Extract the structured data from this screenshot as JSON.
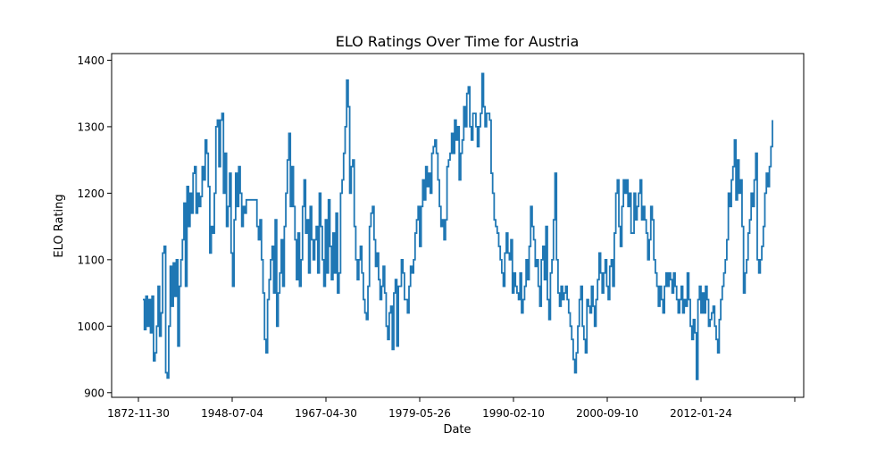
{
  "chart_data": {
    "type": "line",
    "title": "ELO Ratings Over Time for Austria",
    "xlabel": "Date",
    "ylabel": "ELO Rating",
    "x_ticks": [
      "1872-11-30",
      "1948-07-04",
      "1967-04-30",
      "1979-05-26",
      "1990-02-10",
      "2000-09-10",
      "2012-01-24",
      ""
    ],
    "y_ticks": [
      900,
      1000,
      1100,
      1200,
      1300,
      1400
    ],
    "ylim": [
      893,
      1410
    ],
    "grid": false,
    "legend": "none",
    "series": [
      {
        "color": "#1f77b4",
        "values": [
          1040,
          995,
          1045,
          1000,
          1040,
          990,
          1045,
          948,
          960,
          1000,
          1060,
          985,
          1020,
          1110,
          1120,
          930,
          922,
          1000,
          1090,
          1030,
          1095,
          1045,
          1100,
          970,
          1060,
          1100,
          1130,
          1185,
          1060,
          1210,
          1150,
          1200,
          1170,
          1230,
          1240,
          1170,
          1200,
          1180,
          1195,
          1240,
          1220,
          1280,
          1260,
          1210,
          1110,
          1150,
          1140,
          1200,
          1300,
          1310,
          1240,
          1310,
          1320,
          1200,
          1260,
          1150,
          1180,
          1230,
          1110,
          1060,
          1160,
          1230,
          1180,
          1240,
          1200,
          1150,
          1180,
          1170,
          1190,
          1190,
          1190,
          1190,
          1190,
          1190,
          1190,
          1150,
          1130,
          1160,
          1100,
          1050,
          980,
          960,
          1040,
          1070,
          1100,
          1120,
          1050,
          1160,
          1000,
          1050,
          1080,
          1130,
          1060,
          1150,
          1200,
          1250,
          1290,
          1180,
          1240,
          1180,
          1130,
          1070,
          1140,
          1060,
          1100,
          1180,
          1220,
          1140,
          1160,
          1080,
          1180,
          1130,
          1100,
          1130,
          1150,
          1080,
          1200,
          1150,
          1100,
          1060,
          1160,
          1080,
          1190,
          1120,
          1070,
          1140,
          1080,
          1170,
          1050,
          1080,
          1200,
          1220,
          1260,
          1300,
          1370,
          1330,
          1200,
          1240,
          1250,
          1150,
          1100,
          1070,
          1100,
          1120,
          1080,
          1040,
          1020,
          1010,
          1060,
          1150,
          1170,
          1180,
          1130,
          1090,
          1110,
          1070,
          1040,
          1060,
          1090,
          1050,
          1000,
          980,
          1020,
          1030,
          965,
          1050,
          1070,
          970,
          1060,
          1060,
          1100,
          1080,
          1040,
          1040,
          1020,
          1060,
          1090,
          1080,
          1100,
          1140,
          1160,
          1180,
          1120,
          1180,
          1220,
          1190,
          1240,
          1210,
          1230,
          1200,
          1260,
          1270,
          1280,
          1260,
          1220,
          1180,
          1150,
          1160,
          1130,
          1160,
          1240,
          1250,
          1260,
          1290,
          1260,
          1310,
          1280,
          1300,
          1220,
          1260,
          1280,
          1330,
          1300,
          1350,
          1360,
          1300,
          1280,
          1320,
          1320,
          1300,
          1270,
          1300,
          1320,
          1380,
          1330,
          1300,
          1320,
          1320,
          1310,
          1230,
          1200,
          1160,
          1150,
          1140,
          1120,
          1100,
          1080,
          1060,
          1110,
          1140,
          1110,
          1100,
          1130,
          1050,
          1080,
          1060,
          1050,
          1040,
          1080,
          1020,
          1040,
          1060,
          1100,
          1070,
          1120,
          1180,
          1150,
          1130,
          1090,
          1100,
          1060,
          1030,
          1100,
          1120,
          1070,
          1150,
          1040,
          1010,
          1080,
          1100,
          1160,
          1230,
          1100,
          1050,
          1030,
          1060,
          1040,
          1050,
          1060,
          1040,
          1020,
          1000,
          980,
          950,
          930,
          960,
          1000,
          1040,
          1060,
          1000,
          980,
          960,
          1040,
          1030,
          1020,
          1060,
          1030,
          1000,
          1040,
          1070,
          1110,
          1080,
          1050,
          1080,
          1100,
          1060,
          1040,
          1090,
          1100,
          1060,
          1140,
          1200,
          1220,
          1150,
          1120,
          1180,
          1220,
          1200,
          1220,
          1180,
          1200,
          1140,
          1140,
          1200,
          1160,
          1180,
          1200,
          1220,
          1160,
          1180,
          1160,
          1140,
          1100,
          1130,
          1180,
          1160,
          1100,
          1080,
          1060,
          1030,
          1060,
          1040,
          1020,
          1060,
          1080,
          1060,
          1080,
          1070,
          1050,
          1080,
          1060,
          1040,
          1020,
          1040,
          1060,
          1020,
          1040,
          1030,
          1080,
          1040,
          1000,
          980,
          1010,
          990,
          920,
          1040,
          1060,
          1020,
          1050,
          1020,
          1060,
          1040,
          1000,
          1010,
          1020,
          1030,
          1000,
          980,
          960,
          1010,
          1040,
          1060,
          1080,
          1100,
          1130,
          1200,
          1180,
          1220,
          1240,
          1280,
          1190,
          1250,
          1200,
          1220,
          1150,
          1050,
          1080,
          1100,
          1140,
          1160,
          1200,
          1180,
          1220,
          1260,
          1100,
          1080,
          1100,
          1120,
          1150,
          1200,
          1230,
          1210,
          1240,
          1270,
          1310
        ]
      }
    ]
  }
}
